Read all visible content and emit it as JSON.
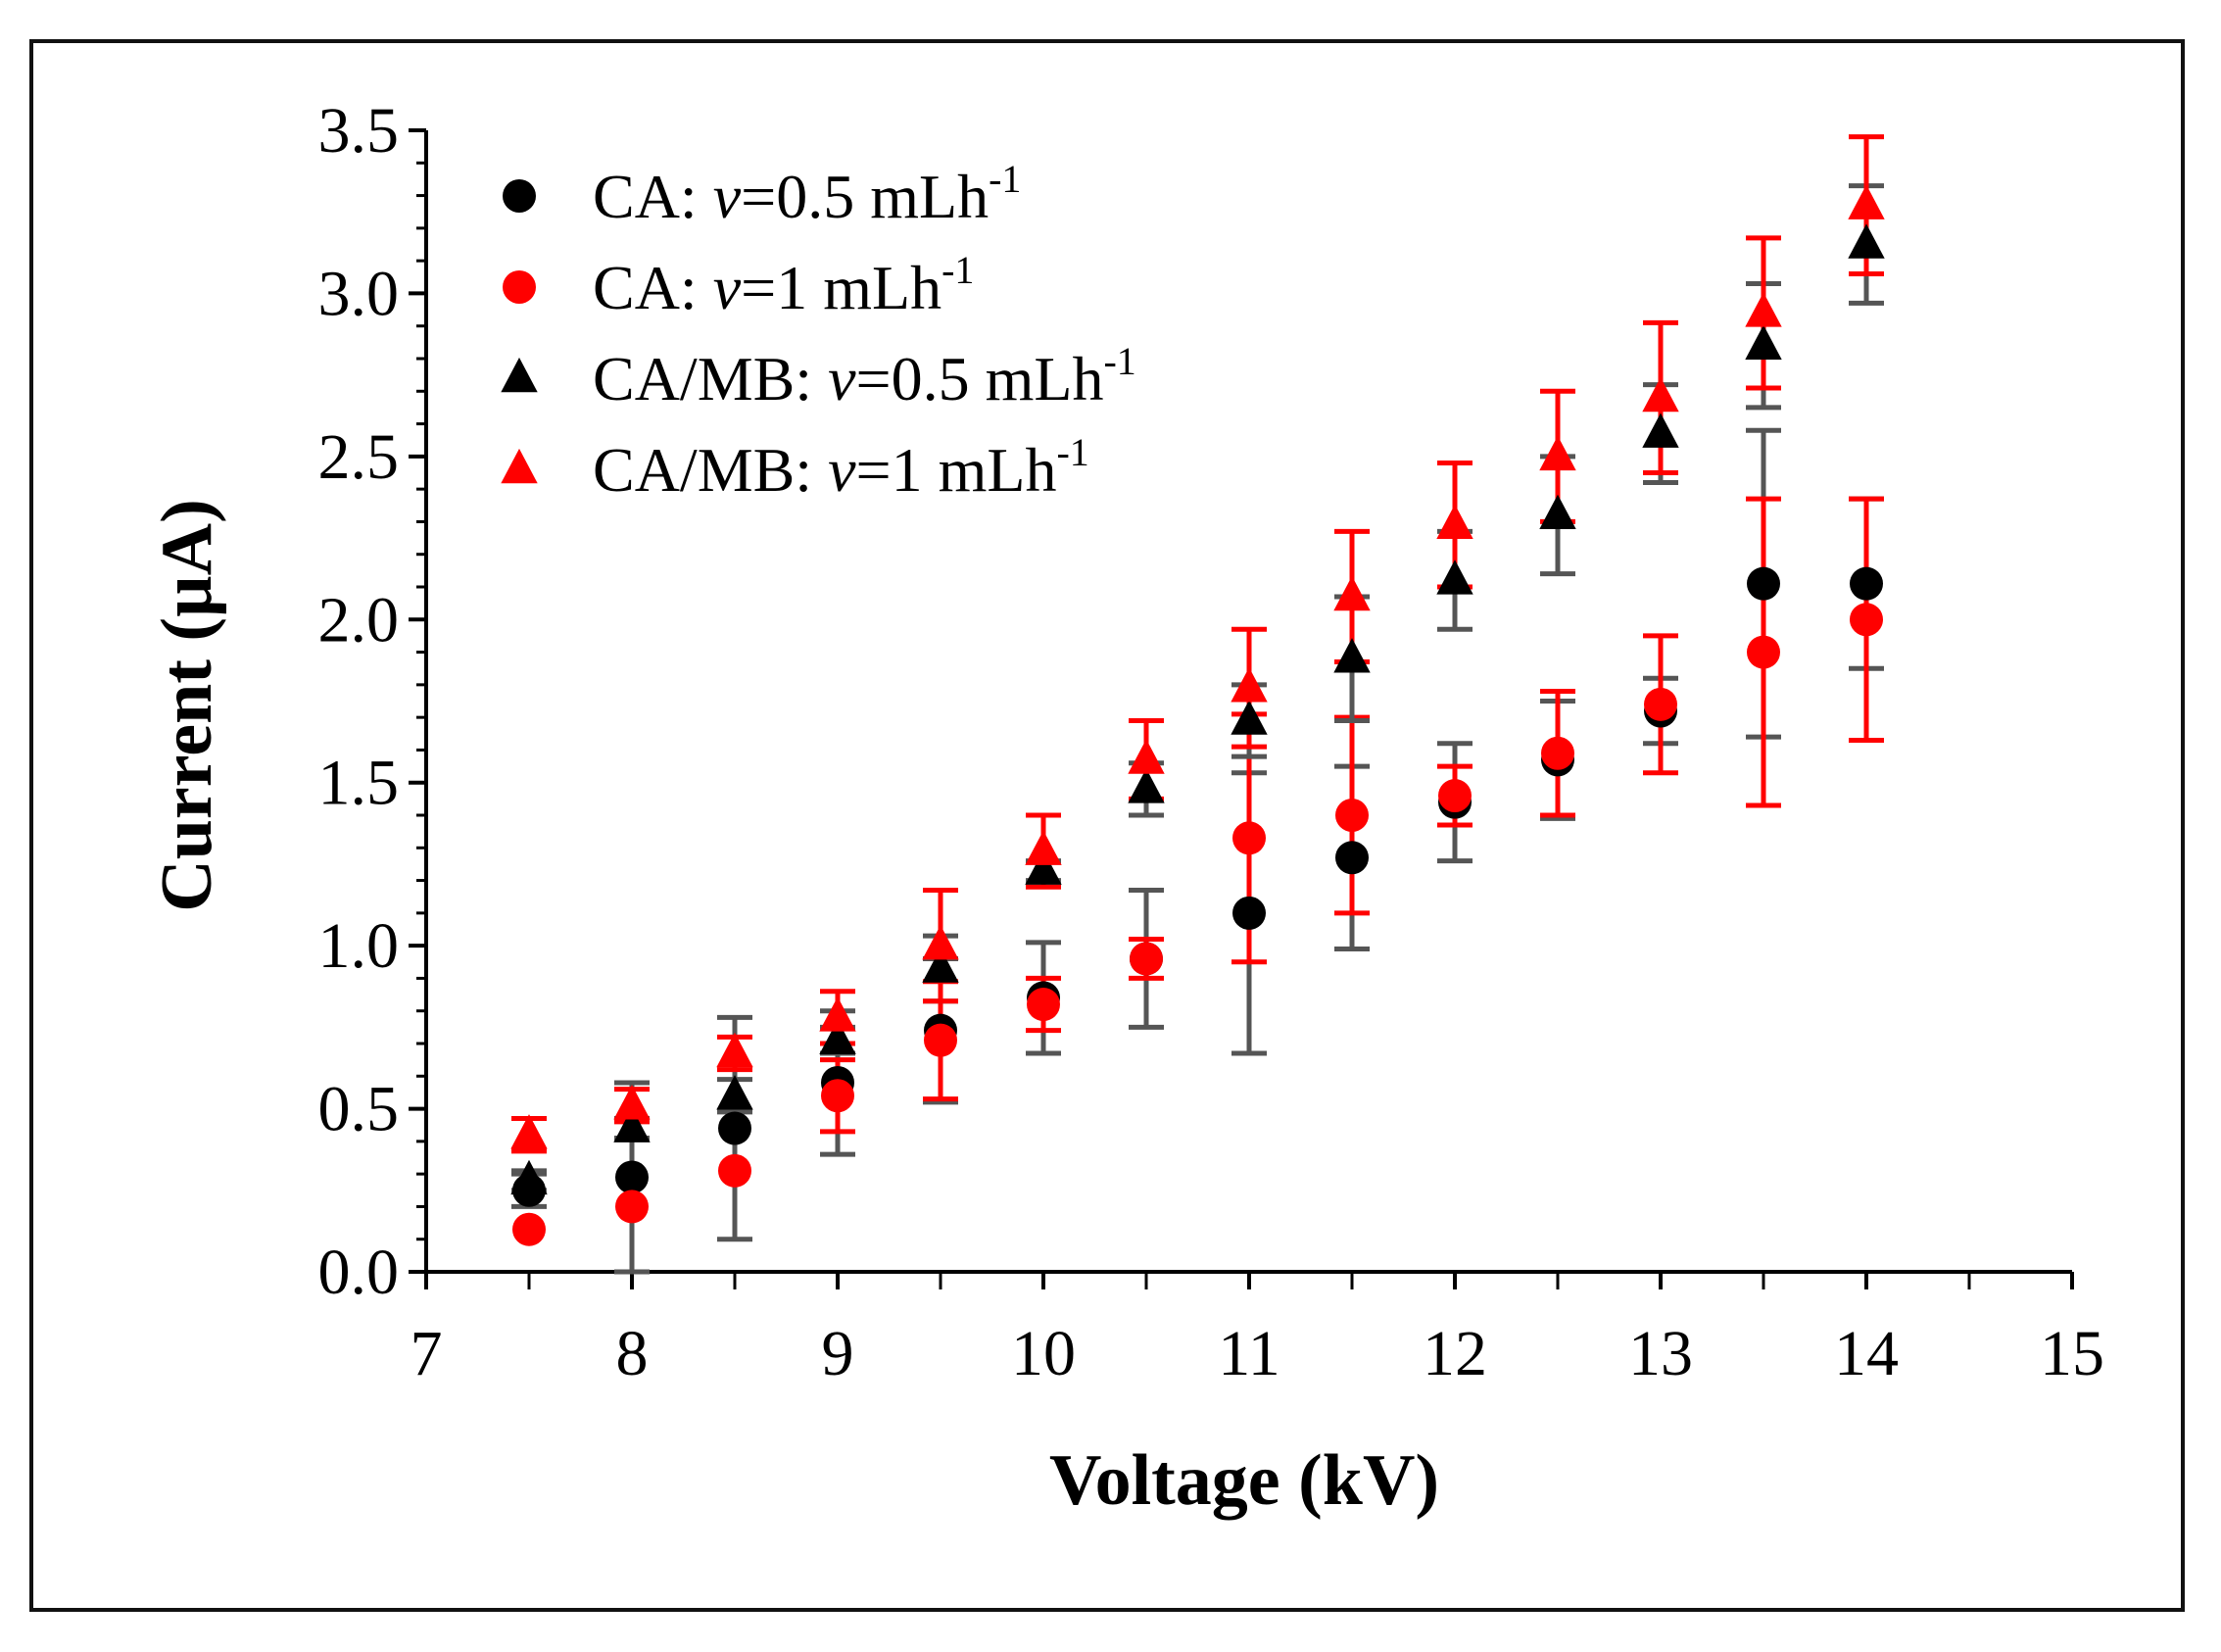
{
  "chart_data": {
    "type": "scatter",
    "title": "",
    "xlabel": "Voltage (kV)",
    "ylabel": "Current (µA)",
    "xlim": [
      7,
      15
    ],
    "ylim": [
      0.0,
      3.5
    ],
    "x_ticks": [
      7,
      8,
      9,
      10,
      11,
      12,
      13,
      14,
      15
    ],
    "x_tick_labels": [
      "7",
      "8",
      "9",
      "10",
      "11",
      "12",
      "13",
      "14",
      "15"
    ],
    "y_ticks": [
      0.0,
      0.5,
      1.0,
      1.5,
      2.0,
      2.5,
      3.0,
      3.5
    ],
    "y_tick_labels": [
      "0.0",
      "0.5",
      "1.0",
      "1.5",
      "2.0",
      "2.5",
      "3.0",
      "3.5"
    ],
    "grid": false,
    "legend_position": "top-left",
    "x": [
      7.5,
      8,
      8.5,
      9,
      9.5,
      10,
      10.5,
      11,
      11.5,
      12,
      12.5,
      13,
      13.5,
      14
    ],
    "series": [
      {
        "id": "ca-05",
        "name_prefix": "CA: ",
        "name_var": "v",
        "name_suffix": "=0.5 mLh",
        "name_sup": "-1",
        "marker": "circle",
        "color": "#000000",
        "err_color": "#555555",
        "values": [
          0.25,
          0.29,
          0.44,
          0.58,
          0.74,
          0.84,
          0.96,
          1.1,
          1.27,
          1.44,
          1.57,
          1.72,
          2.11,
          2.11
        ],
        "errors": [
          0.05,
          0.29,
          0.34,
          0.22,
          0.22,
          0.17,
          0.21,
          0.43,
          0.28,
          0.18,
          0.18,
          0.1,
          0.47,
          0.26
        ]
      },
      {
        "id": "ca-1",
        "name_prefix": "CA: ",
        "name_var": "v",
        "name_suffix": "=1 mLh",
        "name_sup": "-1",
        "marker": "circle",
        "color": "#ff0000",
        "err_color": "#ff0000",
        "values": [
          0.13,
          0.2,
          0.31,
          0.54,
          0.71,
          0.82,
          0.96,
          1.33,
          1.4,
          1.46,
          1.59,
          1.74,
          1.9,
          2.0
        ],
        "errors": [
          0.0,
          0.0,
          0.0,
          0.11,
          0.18,
          0.08,
          0.06,
          0.38,
          0.3,
          0.09,
          0.19,
          0.21,
          0.47,
          0.37
        ]
      },
      {
        "id": "camb-05",
        "name_prefix": "CA/MB: ",
        "name_var": "v",
        "name_suffix": "=0.5 mLh",
        "name_sup": "-1",
        "marker": "triangle",
        "color": "#000000",
        "err_color": "#555555",
        "values": [
          0.28,
          0.44,
          0.54,
          0.71,
          0.93,
          1.23,
          1.48,
          1.69,
          1.88,
          2.12,
          2.32,
          2.57,
          2.84,
          3.15
        ],
        "errors": [
          0.03,
          0.03,
          0.05,
          0.04,
          0.1,
          0.03,
          0.08,
          0.11,
          0.19,
          0.15,
          0.18,
          0.15,
          0.19,
          0.18
        ]
      },
      {
        "id": "camb-1",
        "name_prefix": "CA/MB: ",
        "name_var": "v",
        "name_suffix": "=1 mLh",
        "name_sup": "-1",
        "marker": "triangle",
        "color": "#ff0000",
        "err_color": "#ff0000",
        "values": [
          0.42,
          0.51,
          0.67,
          0.78,
          1.0,
          1.29,
          1.57,
          1.79,
          2.07,
          2.29,
          2.5,
          2.68,
          2.94,
          3.27
        ],
        "errors": [
          0.05,
          0.05,
          0.05,
          0.08,
          0.17,
          0.11,
          0.12,
          0.18,
          0.2,
          0.19,
          0.2,
          0.23,
          0.23,
          0.21
        ]
      }
    ]
  }
}
